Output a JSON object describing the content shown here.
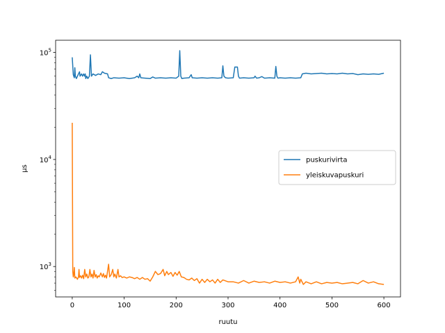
{
  "chart_data": {
    "type": "line",
    "xlabel": "ruutu",
    "ylabel": "µs",
    "yscale": "log",
    "xlim": [
      -32,
      632
    ],
    "ylim": [
      520,
      130000
    ],
    "x_ticks": [
      0,
      100,
      200,
      300,
      400,
      500,
      600
    ],
    "x_tick_labels": [
      "0",
      "100",
      "200",
      "300",
      "400",
      "500",
      "600"
    ],
    "y_major_ticks": [
      1000,
      10000,
      100000
    ],
    "y_tick_labels": [
      {
        "base": "10",
        "exp": "3"
      },
      {
        "base": "10",
        "exp": "4"
      },
      {
        "base": "10",
        "exp": "5"
      }
    ],
    "y_minor_ticks": [
      600,
      700,
      800,
      900,
      2000,
      3000,
      4000,
      5000,
      6000,
      7000,
      8000,
      9000,
      20000,
      30000,
      40000,
      50000,
      60000,
      70000,
      80000,
      90000
    ],
    "legend_position": "center-right",
    "grid": false,
    "series": [
      {
        "name": "puskurivirta",
        "color": "#1f77b4",
        "points": [
          [
            0,
            90000
          ],
          [
            2,
            62000
          ],
          [
            4,
            58000
          ],
          [
            5,
            72000
          ],
          [
            6,
            60000
          ],
          [
            8,
            57000
          ],
          [
            10,
            60000
          ],
          [
            12,
            63000
          ],
          [
            14,
            66000
          ],
          [
            15,
            60000
          ],
          [
            18,
            63000
          ],
          [
            20,
            60000
          ],
          [
            22,
            63000
          ],
          [
            24,
            60000
          ],
          [
            25,
            63000
          ],
          [
            26,
            57000
          ],
          [
            28,
            60000
          ],
          [
            30,
            57000
          ],
          [
            33,
            60000
          ],
          [
            35,
            95000
          ],
          [
            37,
            60000
          ],
          [
            40,
            63000
          ],
          [
            45,
            61000
          ],
          [
            50,
            63000
          ],
          [
            55,
            62000
          ],
          [
            58,
            66000
          ],
          [
            62,
            64000
          ],
          [
            68,
            63000
          ],
          [
            70,
            58000
          ],
          [
            75,
            57000
          ],
          [
            80,
            58000
          ],
          [
            90,
            57500
          ],
          [
            100,
            58000
          ],
          [
            110,
            57000
          ],
          [
            120,
            58000
          ],
          [
            125,
            60000
          ],
          [
            128,
            58000
          ],
          [
            130,
            63000
          ],
          [
            132,
            58000
          ],
          [
            140,
            57500
          ],
          [
            150,
            57000
          ],
          [
            155,
            59000
          ],
          [
            160,
            57500
          ],
          [
            170,
            58000
          ],
          [
            180,
            57500
          ],
          [
            190,
            58000
          ],
          [
            200,
            57500
          ],
          [
            205,
            60000
          ],
          [
            207,
            104000
          ],
          [
            209,
            60000
          ],
          [
            211,
            57000
          ],
          [
            215,
            57500
          ],
          [
            225,
            58000
          ],
          [
            229,
            62000
          ],
          [
            231,
            58000
          ],
          [
            240,
            57500
          ],
          [
            250,
            58000
          ],
          [
            260,
            57500
          ],
          [
            270,
            58000
          ],
          [
            280,
            57500
          ],
          [
            288,
            58000
          ],
          [
            290,
            75000
          ],
          [
            292,
            60000
          ],
          [
            295,
            58000
          ],
          [
            300,
            57500
          ],
          [
            310,
            58000
          ],
          [
            313,
            73000
          ],
          [
            318,
            73000
          ],
          [
            320,
            60000
          ],
          [
            322,
            57500
          ],
          [
            330,
            58000
          ],
          [
            340,
            57500
          ],
          [
            350,
            58000
          ],
          [
            352,
            60000
          ],
          [
            355,
            57500
          ],
          [
            360,
            58000
          ],
          [
            365,
            59500
          ],
          [
            370,
            57500
          ],
          [
            380,
            58000
          ],
          [
            390,
            57500
          ],
          [
            392,
            74000
          ],
          [
            394,
            60000
          ],
          [
            396,
            57500
          ],
          [
            400,
            58000
          ],
          [
            410,
            57500
          ],
          [
            420,
            58000
          ],
          [
            430,
            57500
          ],
          [
            440,
            58000
          ],
          [
            443,
            63000
          ],
          [
            450,
            64000
          ],
          [
            460,
            63000
          ],
          [
            470,
            63500
          ],
          [
            480,
            64000
          ],
          [
            490,
            63000
          ],
          [
            500,
            63500
          ],
          [
            510,
            63000
          ],
          [
            520,
            64000
          ],
          [
            530,
            63000
          ],
          [
            540,
            63500
          ],
          [
            550,
            62000
          ],
          [
            560,
            63000
          ],
          [
            570,
            62500
          ],
          [
            580,
            63000
          ],
          [
            590,
            62500
          ],
          [
            600,
            64000
          ]
        ]
      },
      {
        "name": "yleiskuvapuskuri",
        "color": "#ff7f0e",
        "points": [
          [
            0,
            22000
          ],
          [
            1,
            900
          ],
          [
            2,
            800
          ],
          [
            3,
            850
          ],
          [
            4,
            980
          ],
          [
            5,
            780
          ],
          [
            7,
            800
          ],
          [
            10,
            760
          ],
          [
            12,
            800
          ],
          [
            13,
            940
          ],
          [
            14,
            790
          ],
          [
            16,
            820
          ],
          [
            18,
            780
          ],
          [
            20,
            830
          ],
          [
            22,
            770
          ],
          [
            24,
            940
          ],
          [
            26,
            800
          ],
          [
            28,
            850
          ],
          [
            30,
            780
          ],
          [
            32,
            800
          ],
          [
            34,
            940
          ],
          [
            36,
            800
          ],
          [
            38,
            850
          ],
          [
            40,
            780
          ],
          [
            42,
            920
          ],
          [
            44,
            800
          ],
          [
            46,
            840
          ],
          [
            48,
            780
          ],
          [
            50,
            820
          ],
          [
            52,
            800
          ],
          [
            55,
            870
          ],
          [
            58,
            800
          ],
          [
            60,
            860
          ],
          [
            62,
            790
          ],
          [
            64,
            830
          ],
          [
            66,
            780
          ],
          [
            70,
            1050
          ],
          [
            72,
            800
          ],
          [
            75,
            840
          ],
          [
            78,
            940
          ],
          [
            80,
            800
          ],
          [
            82,
            850
          ],
          [
            85,
            780
          ],
          [
            88,
            940
          ],
          [
            90,
            800
          ],
          [
            93,
            820
          ],
          [
            96,
            790
          ],
          [
            100,
            800
          ],
          [
            105,
            780
          ],
          [
            110,
            800
          ],
          [
            115,
            790
          ],
          [
            120,
            770
          ],
          [
            125,
            790
          ],
          [
            130,
            760
          ],
          [
            135,
            790
          ],
          [
            140,
            760
          ],
          [
            145,
            770
          ],
          [
            150,
            730
          ],
          [
            155,
            800
          ],
          [
            160,
            900
          ],
          [
            165,
            840
          ],
          [
            170,
            860
          ],
          [
            175,
            940
          ],
          [
            178,
            820
          ],
          [
            182,
            900
          ],
          [
            185,
            840
          ],
          [
            190,
            880
          ],
          [
            194,
            810
          ],
          [
            198,
            880
          ],
          [
            202,
            830
          ],
          [
            206,
            900
          ],
          [
            210,
            800
          ],
          [
            215,
            790
          ],
          [
            220,
            760
          ],
          [
            225,
            750
          ],
          [
            230,
            780
          ],
          [
            235,
            740
          ],
          [
            240,
            770
          ],
          [
            245,
            700
          ],
          [
            250,
            760
          ],
          [
            255,
            710
          ],
          [
            260,
            760
          ],
          [
            265,
            720
          ],
          [
            270,
            750
          ],
          [
            275,
            700
          ],
          [
            280,
            760
          ],
          [
            285,
            710
          ],
          [
            290,
            750
          ],
          [
            300,
            720
          ],
          [
            310,
            720
          ],
          [
            320,
            700
          ],
          [
            330,
            740
          ],
          [
            340,
            700
          ],
          [
            350,
            730
          ],
          [
            360,
            710
          ],
          [
            370,
            720
          ],
          [
            380,
            700
          ],
          [
            390,
            730
          ],
          [
            400,
            710
          ],
          [
            410,
            720
          ],
          [
            420,
            700
          ],
          [
            430,
            720
          ],
          [
            435,
            800
          ],
          [
            438,
            700
          ],
          [
            440,
            760
          ],
          [
            445,
            680
          ],
          [
            450,
            720
          ],
          [
            460,
            690
          ],
          [
            470,
            720
          ],
          [
            480,
            690
          ],
          [
            490,
            710
          ],
          [
            500,
            700
          ],
          [
            510,
            710
          ],
          [
            520,
            690
          ],
          [
            530,
            700
          ],
          [
            540,
            710
          ],
          [
            550,
            690
          ],
          [
            560,
            740
          ],
          [
            570,
            700
          ],
          [
            580,
            720
          ],
          [
            590,
            690
          ],
          [
            600,
            680
          ]
        ]
      }
    ]
  }
}
